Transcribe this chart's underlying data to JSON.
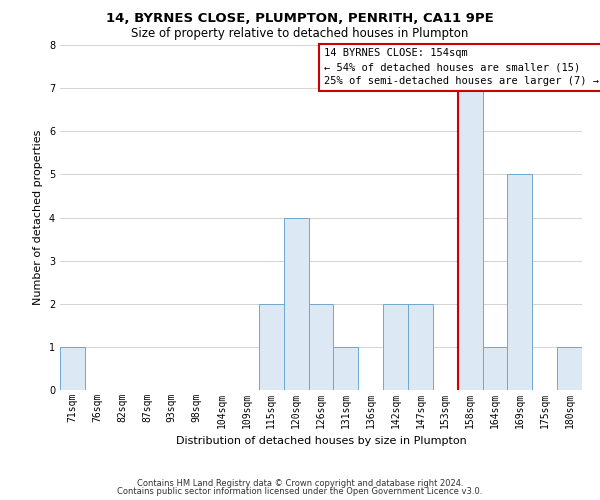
{
  "title": "14, BYRNES CLOSE, PLUMPTON, PENRITH, CA11 9PE",
  "subtitle": "Size of property relative to detached houses in Plumpton",
  "xlabel": "Distribution of detached houses by size in Plumpton",
  "ylabel": "Number of detached properties",
  "bar_labels": [
    "71sqm",
    "76sqm",
    "82sqm",
    "87sqm",
    "93sqm",
    "98sqm",
    "104sqm",
    "109sqm",
    "115sqm",
    "120sqm",
    "126sqm",
    "131sqm",
    "136sqm",
    "142sqm",
    "147sqm",
    "153sqm",
    "158sqm",
    "164sqm",
    "169sqm",
    "175sqm",
    "180sqm"
  ],
  "bar_values": [
    1,
    0,
    0,
    0,
    0,
    0,
    0,
    0,
    2,
    4,
    2,
    1,
    0,
    2,
    2,
    0,
    7,
    1,
    5,
    0,
    1
  ],
  "bar_facecolor": "#dce9f5",
  "bar_edgecolor": "#6fa8d0",
  "vline_color": "#cc0000",
  "ylim": [
    0,
    8
  ],
  "yticks": [
    0,
    1,
    2,
    3,
    4,
    5,
    6,
    7,
    8
  ],
  "grid_color": "#cccccc",
  "annotation_title": "14 BYRNES CLOSE: 154sqm",
  "annotation_line1": "← 54% of detached houses are smaller (15)",
  "annotation_line2": "25% of semi-detached houses are larger (7) →",
  "footnote1": "Contains HM Land Registry data © Crown copyright and database right 2024.",
  "footnote2": "Contains public sector information licensed under the Open Government Licence v3.0.",
  "bg_color": "#ffffff",
  "plot_bg_color": "#ffffff",
  "title_fontsize": 9.5,
  "subtitle_fontsize": 8.5,
  "axis_label_fontsize": 8,
  "tick_fontsize": 7,
  "annotation_fontsize": 7.5,
  "footnote_fontsize": 6
}
